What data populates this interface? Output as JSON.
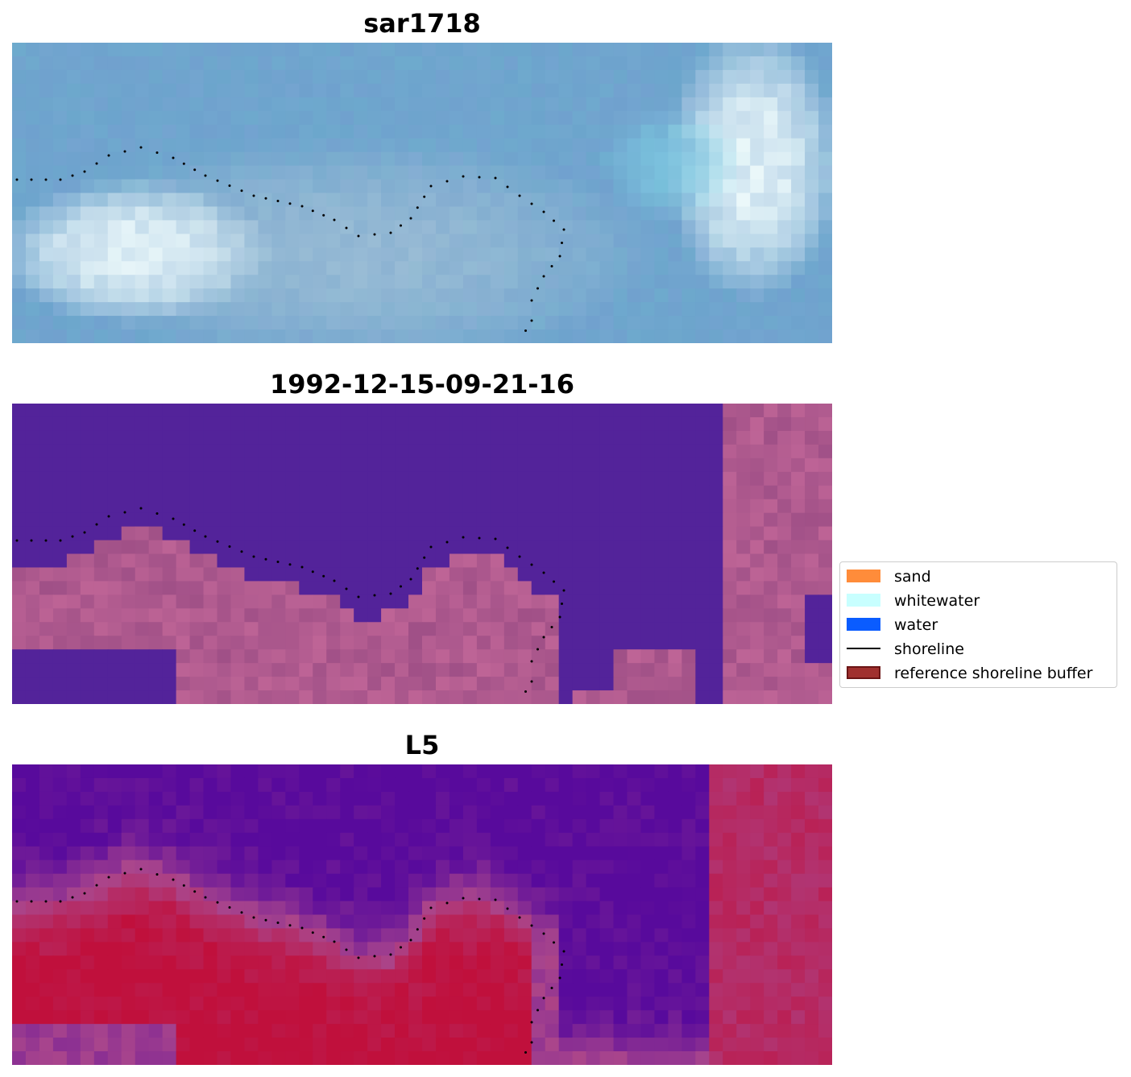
{
  "panels": [
    {
      "title": "sar1718",
      "style": "rgb"
    },
    {
      "title": "1992-12-15-09-21-16",
      "style": "classified"
    },
    {
      "title": "L5",
      "style": "index"
    }
  ],
  "legend": {
    "items": [
      {
        "label": "sand",
        "kind": "patch",
        "color": "#ff8c3a"
      },
      {
        "label": "whitewater",
        "kind": "patch",
        "color": "#c8ffff"
      },
      {
        "label": "water",
        "kind": "patch",
        "color": "#0a5cff"
      },
      {
        "label": "shoreline",
        "kind": "line",
        "color": "#000000"
      },
      {
        "label": "reference shoreline buffer",
        "kind": "patch",
        "color": "#a0302e",
        "edge": "#6b1515"
      }
    ]
  },
  "colors": {
    "water_class": "#53239a",
    "land_class": "#a04f86",
    "index_low": "#5b0a9c",
    "index_high": "#c0103c"
  }
}
